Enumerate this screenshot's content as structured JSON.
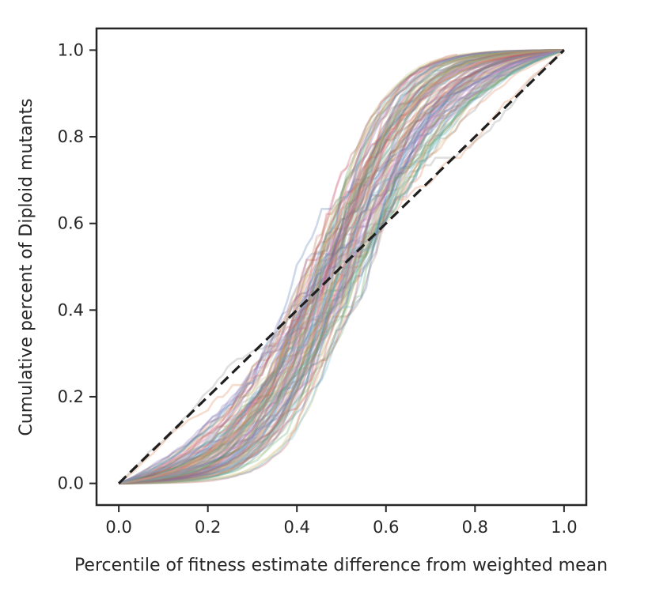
{
  "chart_data": {
    "type": "line",
    "title": "",
    "xlabel": "Percentile of fitness estimate difference from weighted mean",
    "ylabel": "Cumulative percent of Diploid mutants",
    "xlim": [
      -0.05,
      1.05
    ],
    "ylim": [
      -0.05,
      1.05
    ],
    "xticks": [
      "0.0",
      "0.2",
      "0.4",
      "0.6",
      "0.8",
      "1.0"
    ],
    "yticks": [
      "0.0",
      "0.2",
      "0.4",
      "0.6",
      "0.8",
      "1.0"
    ],
    "grid": false,
    "reference_line": {
      "style": "dashed",
      "color": "#1f1f1f",
      "x": [
        0,
        1
      ],
      "y": [
        0,
        1
      ]
    },
    "series_summary": {
      "description": "Many semi-transparent cumulative distribution curves (one per replicate), mostly S-shaped crossing the diagonal near (0.5, 0.5)",
      "count": 110,
      "typical_shape": {
        "x": [
          0.0,
          0.1,
          0.2,
          0.3,
          0.4,
          0.5,
          0.6,
          0.7,
          0.8,
          0.9,
          1.0
        ],
        "y": [
          0.0,
          0.03,
          0.08,
          0.18,
          0.33,
          0.5,
          0.67,
          0.82,
          0.92,
          0.97,
          1.0
        ]
      },
      "extremes": [
        {
          "name": "steep",
          "x": [
            0.0,
            0.2,
            0.4,
            0.45,
            0.5,
            0.55,
            0.6,
            0.7,
            0.76
          ],
          "y": [
            0.0,
            0.02,
            0.08,
            0.2,
            0.5,
            0.8,
            0.92,
            0.98,
            0.99
          ]
        },
        {
          "name": "shallow",
          "x": [
            0.0,
            0.01,
            0.1,
            0.2,
            0.3,
            0.4,
            0.5,
            0.6,
            0.7,
            0.8,
            0.9,
            1.0
          ],
          "y": [
            0.0,
            0.1,
            0.15,
            0.26,
            0.35,
            0.42,
            0.5,
            0.57,
            0.65,
            0.72,
            0.82,
            1.0
          ]
        }
      ]
    },
    "palette": [
      "#4c72b0",
      "#dd8452",
      "#55a868",
      "#c44e52",
      "#8172b3",
      "#937860",
      "#da8bc3",
      "#8c8c8c",
      "#ccb974",
      "#64b5cd"
    ]
  }
}
